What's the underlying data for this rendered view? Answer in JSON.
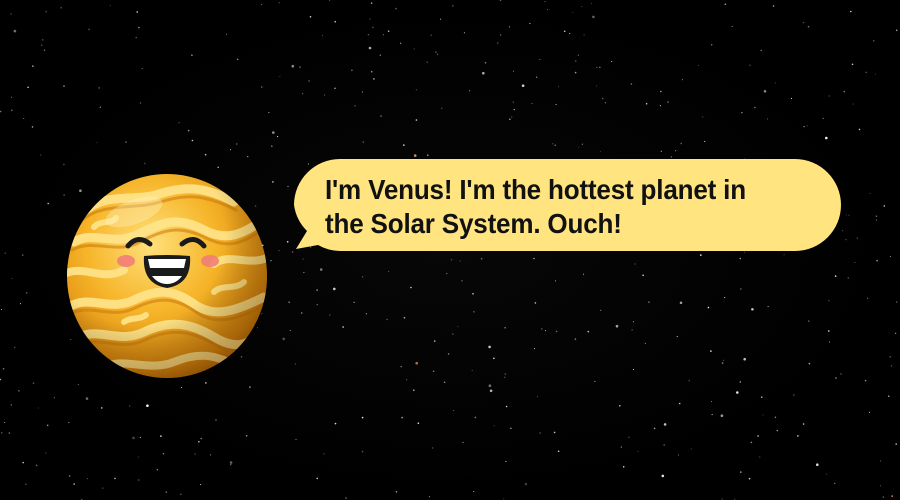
{
  "speech_bubble": {
    "text": "I'm Venus! I'm the hottest planet in the Solar System. Ouch!"
  },
  "colors": {
    "background": "#000000",
    "bubble_fill": "#ffe480",
    "planet_base": "#f2a316",
    "planet_highlight": "#ffd95a",
    "text": "#111111"
  },
  "icons": {
    "planet": "venus-cartoon-character-icon",
    "background": "starfield"
  }
}
